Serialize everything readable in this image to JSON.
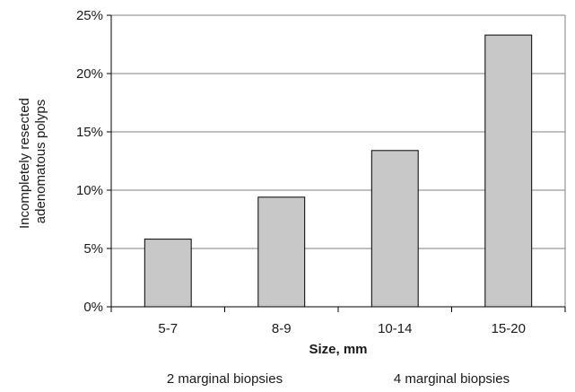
{
  "chart_data": {
    "type": "bar",
    "categories": [
      "5-7",
      "8-9",
      "10-14",
      "15-20"
    ],
    "values": [
      5.8,
      9.4,
      13.4,
      23.3
    ],
    "title": "",
    "xlabel": "Size, mm",
    "ylabel_lines": [
      "Incompletely resected",
      "adenomatous polyps"
    ],
    "ylim": [
      0,
      25
    ],
    "yticks": [
      0,
      5,
      10,
      15,
      20,
      25
    ],
    "ytick_labels": [
      "0%",
      "5%",
      "10%",
      "15%",
      "20%",
      "25%"
    ],
    "grid": "horizontal",
    "group_labels": [
      {
        "label": "2 marginal biopsies",
        "categories": [
          "5-7",
          "8-9"
        ]
      },
      {
        "label": "4 marginal biopsies",
        "categories": [
          "10-14",
          "15-20"
        ]
      }
    ],
    "colors": {
      "bar_fill": "#c8c8c8",
      "bar_stroke": "#000000",
      "grid": "#808080",
      "axis": "#000000"
    }
  }
}
